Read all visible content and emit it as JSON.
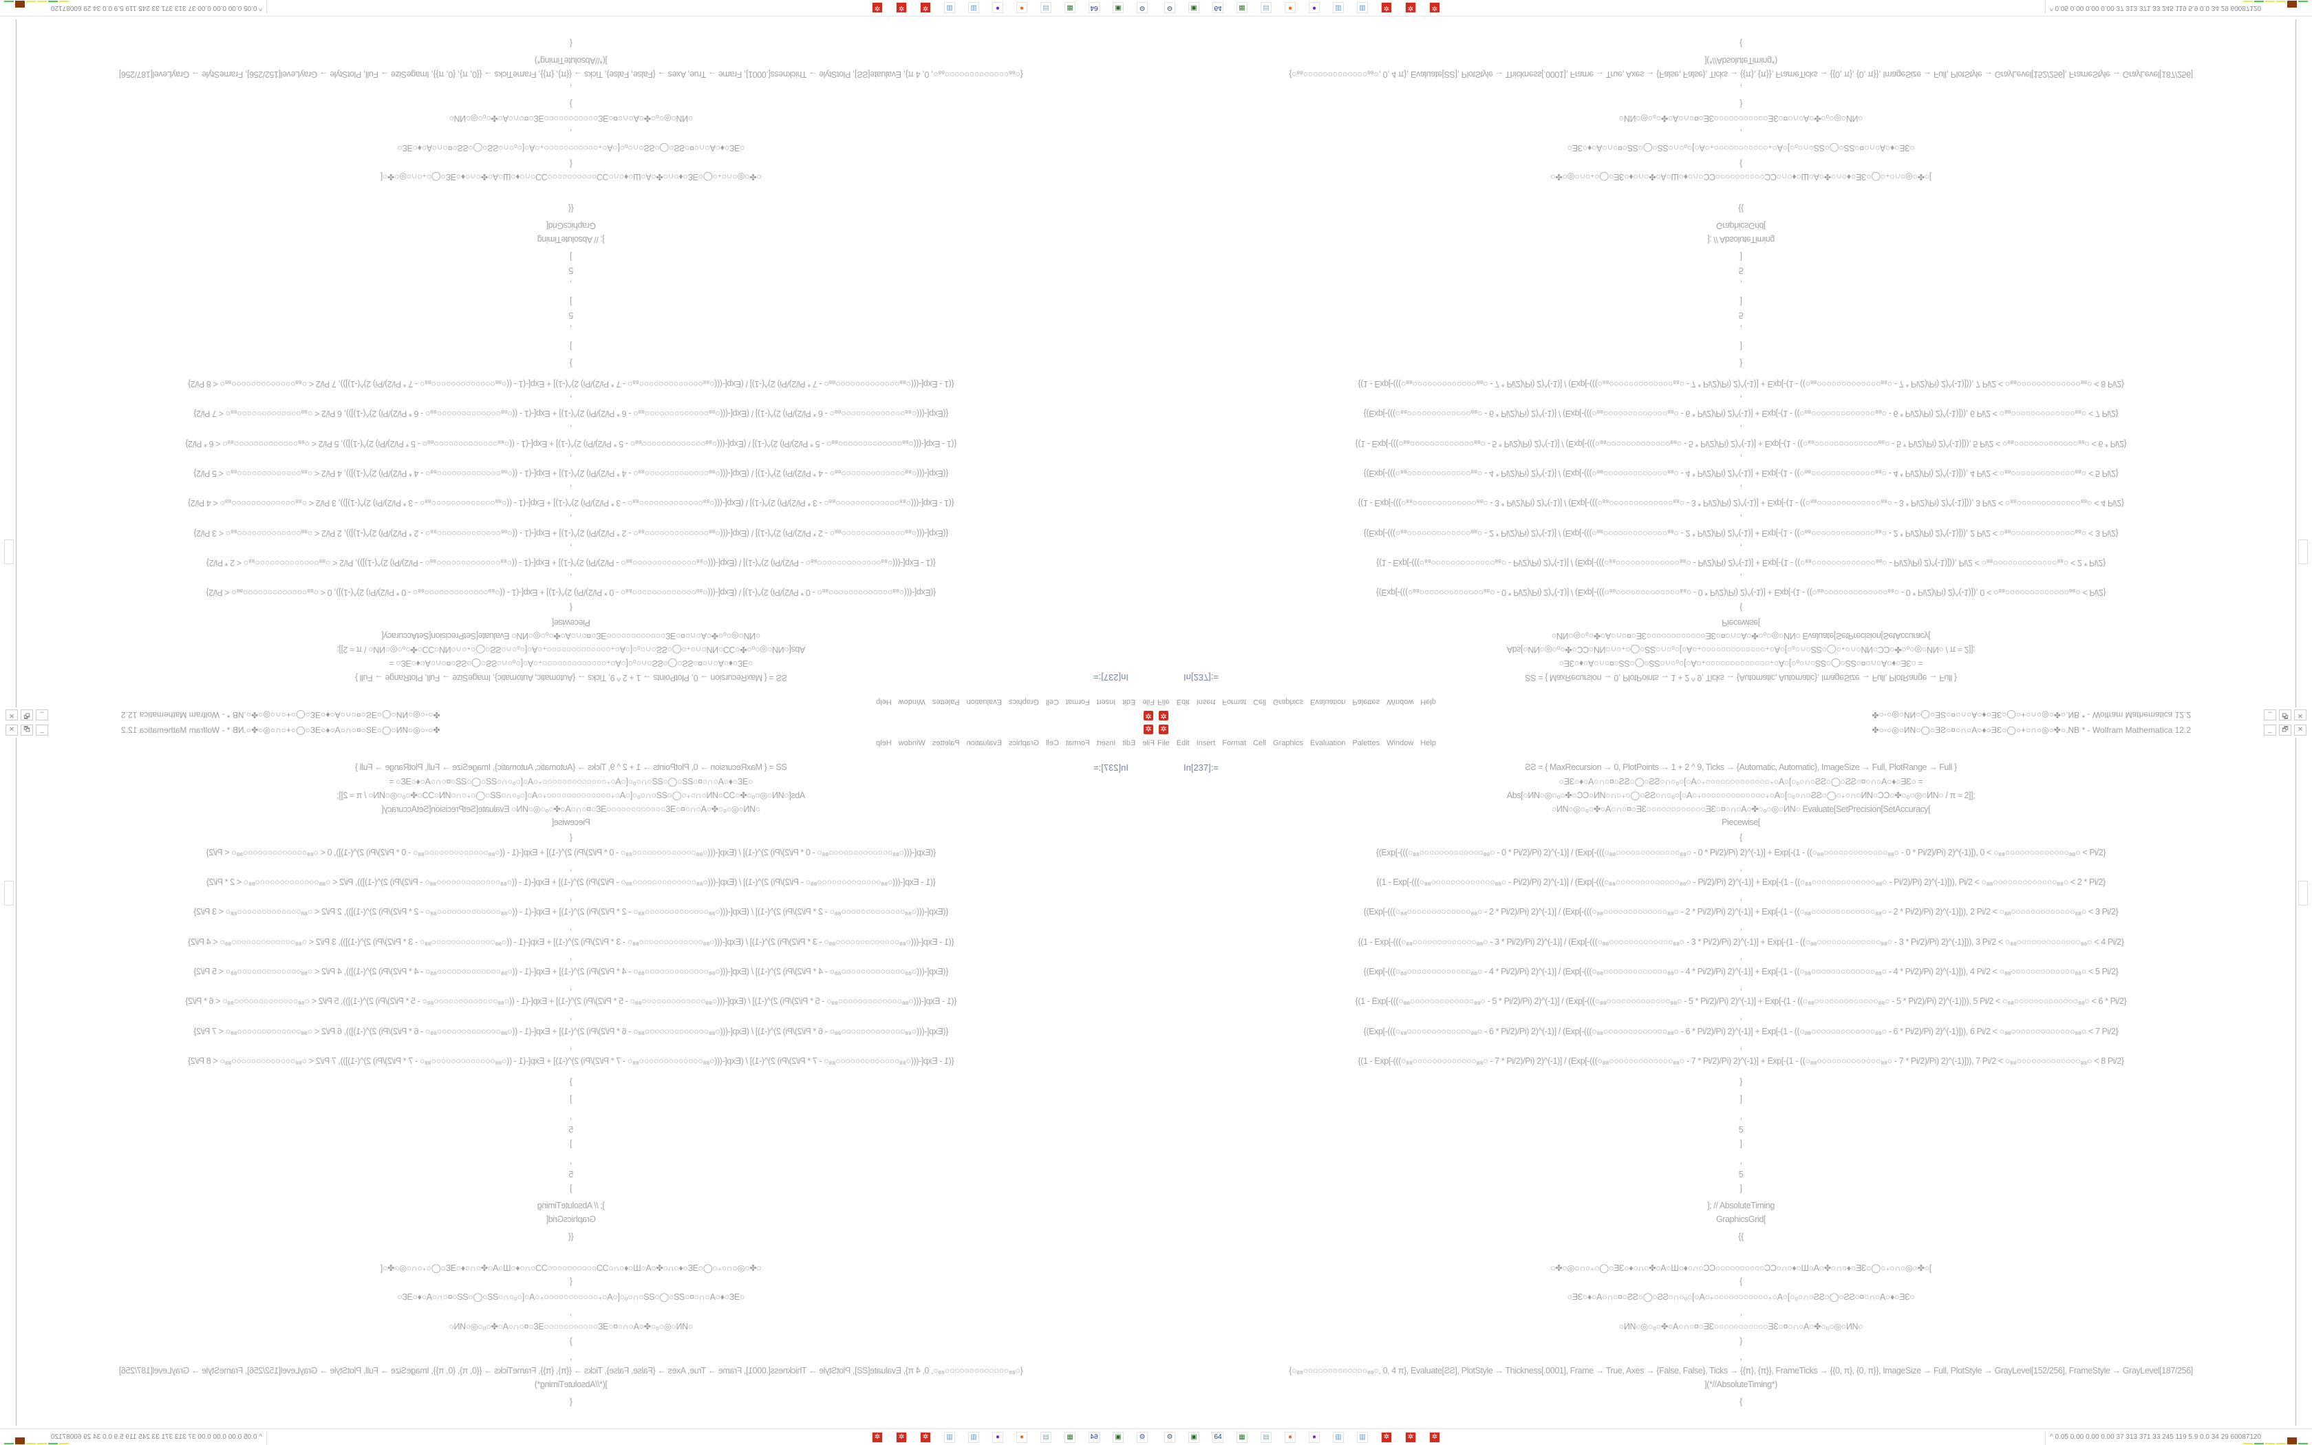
{
  "window": {
    "title": "✤○◦○◎○ИN○◯○ƎƧ○¤○∩○A○♦○ƎƐ○◯○+○∩○◎○✤○.NB * - Wolfram Mathematica 12.2",
    "app_icon": "mathematica-icon",
    "controls": {
      "minimize": "_",
      "restore": "🗗",
      "close": "✕"
    }
  },
  "menu": [
    "File",
    "Edit",
    "Insert",
    "Format",
    "Cell",
    "Graphics",
    "Evaluation",
    "Palettes",
    "Window",
    "Help"
  ],
  "notebook": {
    "input_label": "In[237]:=",
    "lines": [
      "ƧƧ = {   MaxRecursion → 0, PlotPoints → 1 + 2 ^ 9, Ticks → {Automatic, Automatic}, ImageSize → Full, PlotRange → Full   }",
      "○ƎƐ○♦○A○∩○¤○ƧƧ○◯○ƧƧ○∩○₀○[○A○₊○○○○○○○○○○○○○₊○A○[○₀○∩○ƧƧ○◯○ƧƧ○¤○∩○A○♦○ƎƐ○   =",
      "Abs[○ИN○◎○₀○✤○ƆƆ○ИN○∩○₊○◯○ƧƧ○∩○₀○[○A○₊○○○○○○○○○○○○○₊○A○[○₀○∩○ƧƧ○◯○₊○∩○ИN○ƆƆ○✤○₀○◎○ИN○ / π ≈ 2]];",
      "○ИN○◎○₀○✤○A○∩○¤○ƎƐ○○○○○○○○○○○○ƎƐ○¤○∩○A○✤○₀○◎○ИN○ Evaluate[SetPrecision[SetAccuracy[",
      "Piecewise[",
      "{",
      "{(Exp[-(((○₈₈○○○○○○○○○○○○○₈₈○ - 0 * Pi/2)/Pi) 2)^(-1)] / (Exp[-(((○₈₈○○○○○○○○○○○○○₈₈○ - 0 * Pi/2)/Pi) 2)^(-1)] + Exp[-(1 - ((○₈₈○○○○○○○○○○○○○₈₈○ - 0 * Pi/2)/Pi) 2)^(-1)]), 0 < ○₈₈○○○○○○○○○○○○○₈₈○ < Pi/2}",
      ",",
      "{(1 - Exp[-(((○₈₈○○○○○○○○○○○○○₈₈○ - Pi/2)/Pi) 2)^(-1)] / (Exp[-(((○₈₈○○○○○○○○○○○○○₈₈○ - Pi/2)/Pi) 2)^(-1)] + Exp[-(1 - ((○₈₈○○○○○○○○○○○○○₈₈○ - Pi/2)/Pi) 2)^(-1)])), Pi/2 < ○₈₈○○○○○○○○○○○○○₈₈○ < 2 * Pi/2}",
      ",",
      "{(Exp[-(((○₈₈○○○○○○○○○○○○○₈₈○ - 2 * Pi/2)/Pi) 2)^(-1)] / (Exp[-(((○₈₈○○○○○○○○○○○○○₈₈○ - 2 * Pi/2)/Pi) 2)^(-1)] + Exp[-(1 - ((○₈₈○○○○○○○○○○○○○₈₈○ - 2 * Pi/2)/Pi) 2)^(-1)])), 2 Pi/2 < ○₈₈○○○○○○○○○○○○○₈₈○ < 3 Pi/2}",
      ",",
      "{(1 - Exp[-(((○₈₈○○○○○○○○○○○○○₈₈○ - 3 * Pi/2)/Pi) 2)^(-1)] / (Exp[-(((○₈₈○○○○○○○○○○○○○₈₈○ - 3 * Pi/2)/Pi) 2)^(-1)] + Exp[-(1 - ((○₈₈○○○○○○○○○○○○○₈₈○ - 3 * Pi/2)/Pi) 2)^(-1)])), 3 Pi/2 < ○₈₈○○○○○○○○○○○○○₈₈○ < 4 Pi/2}",
      ",",
      "{(Exp[-(((○₈₈○○○○○○○○○○○○○₈₈○ - 4 * Pi/2)/Pi) 2)^(-1)] / (Exp[-(((○₈₈○○○○○○○○○○○○○₈₈○ - 4 * Pi/2)/Pi) 2)^(-1)] + Exp[-(1 - ((○₈₈○○○○○○○○○○○○○₈₈○ - 4 * Pi/2)/Pi) 2)^(-1)])), 4 Pi/2 < ○₈₈○○○○○○○○○○○○○₈₈○ < 5 Pi/2}",
      ",",
      "{(1 - Exp[-(((○₈₈○○○○○○○○○○○○○₈₈○ - 5 * Pi/2)/Pi) 2)^(-1)] / (Exp[-(((○₈₈○○○○○○○○○○○○○₈₈○ - 5 * Pi/2)/Pi) 2)^(-1)] + Exp[-(1 - ((○₈₈○○○○○○○○○○○○○₈₈○ - 5 * Pi/2)/Pi) 2)^(-1)])), 5 Pi/2 < ○₈₈○○○○○○○○○○○○○₈₈○ < 6 * Pi/2}",
      ",",
      "{(Exp[-(((○₈₈○○○○○○○○○○○○○₈₈○ - 6 * Pi/2)/Pi) 2)^(-1)] / (Exp[-(((○₈₈○○○○○○○○○○○○○₈₈○ - 6 * Pi/2)/Pi) 2)^(-1)] + Exp[-(1 - ((○₈₈○○○○○○○○○○○○○₈₈○ - 6 * Pi/2)/Pi) 2)^(-1)])), 6 Pi/2 < ○₈₈○○○○○○○○○○○○○₈₈○ < 7 Pi/2}",
      ",",
      "{(1 - Exp[-(((○₈₈○○○○○○○○○○○○○₈₈○ - 7 * Pi/2)/Pi) 2)^(-1)] / (Exp[-(((○₈₈○○○○○○○○○○○○○₈₈○ - 7 * Pi/2)/Pi) 2)^(-1)] + Exp[-(1 - ((○₈₈○○○○○○○○○○○○○₈₈○ - 7 * Pi/2)/Pi) 2)^(-1)])), 7 Pi/2 < ○₈₈○○○○○○○○○○○○○₈₈○ < 8 Pi/2}",
      "}",
      "]",
      ",",
      "5",
      "]",
      ",",
      "5",
      "]",
      "]; // AbsoluteTiming",
      "GraphicsGrid[",
      "{{",
      "○✤○◎○∩○₊○◯○ƎƐ○♦○∩○✤○A○Ш○♦○∩○ƆƆ○○○○○○○○○○ƆƆ○∩○♦○Ш○A○✤○∩○♦○ƎƐ○◯○₊○∩○◎○✤○[",
      "{",
      "○ƎƐ○♦○A○∩○¤○ƧƧ○◯○ƧƧ○∩○₀○[○A○₊○○○○○○○○○○○₊○A○[○₀○∩○ƧƧ○◯○ƧƧ○¤○∩○A○♦○ƎƐ○",
      ",",
      "○ИN○◎○₀○✤○A○∩○¤○ƎƐ○○○○○○○○○○○ƎƐ○¤○∩○A○✤○₀○◎○ИN○",
      "}",
      ",",
      "{○₈₈○○○○○○○○○○○○○₈₈○, 0, 4 π}, Evaluate[ƧƧ], PlotStyle → Thickness[.0001], Frame → True, Axes → {False, False}, Ticks → {{π}, {π}}, FrameTicks → {{0, π}, {0, π}}, ImageSize → Full, PlotStyle → GrayLevel[152/256], FrameStyle → GrayLevel[187/256]",
      "](*//AbsoluteTiming*)",
      "{"
    ]
  },
  "taskbar": {
    "icons": [
      "monitor-gear-icon",
      "terminal-icon",
      "floppy-64-icon",
      "monitor-chart-icon",
      "notepad-icon",
      "firefox-icon",
      "ghost-icon",
      "calculator-icon",
      "calculator-icon",
      "mathematica-icon",
      "mathematica-icon",
      "mathematica-icon"
    ],
    "tray_text": "0.05 0.00 0.00 0.00   37   313   371   33   245   119   5.9   0.0   34   29   60087120",
    "tray_chevron": "^",
    "meter_colors": [
      "#e8e84a",
      "#44cc44",
      "#e8e84a",
      "#e8e84a",
      "#8a3a0a",
      "#44cc44"
    ]
  }
}
